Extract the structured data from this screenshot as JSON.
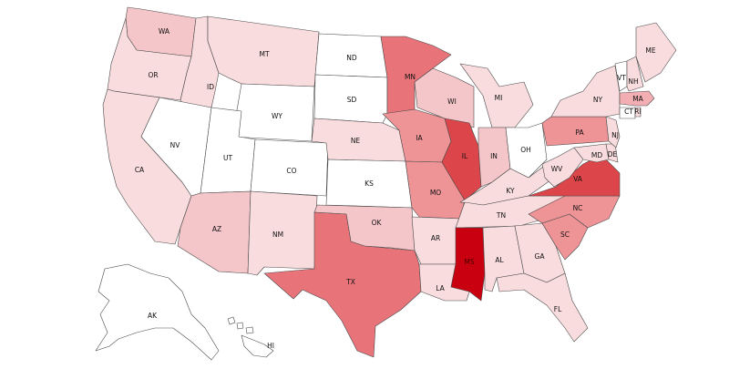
{
  "colors": {
    "none": "#ffffff",
    "light": "#f9dcde",
    "light_mid": "#f5c6c9",
    "mid": "#f2aeb2",
    "mid_strong": "#ee9396",
    "strong": "#e8747a",
    "stronger": "#dc4549",
    "darkest": "#c8000f"
  },
  "states": [
    {
      "code": "WA",
      "level": "light_mid"
    },
    {
      "code": "OR",
      "level": "light"
    },
    {
      "code": "CA",
      "level": "light"
    },
    {
      "code": "ID",
      "level": "light"
    },
    {
      "code": "NV",
      "level": "none"
    },
    {
      "code": "MT",
      "level": "light"
    },
    {
      "code": "WY",
      "level": "none"
    },
    {
      "code": "UT",
      "level": "none"
    },
    {
      "code": "AZ",
      "level": "light_mid"
    },
    {
      "code": "CO",
      "level": "none"
    },
    {
      "code": "NM",
      "level": "light"
    },
    {
      "code": "ND",
      "level": "none"
    },
    {
      "code": "SD",
      "level": "none"
    },
    {
      "code": "NE",
      "level": "light"
    },
    {
      "code": "KS",
      "level": "none"
    },
    {
      "code": "OK",
      "level": "light_mid"
    },
    {
      "code": "TX",
      "level": "strong"
    },
    {
      "code": "MN",
      "level": "strong"
    },
    {
      "code": "IA",
      "level": "mid_strong"
    },
    {
      "code": "MO",
      "level": "mid_strong"
    },
    {
      "code": "AR",
      "level": "light"
    },
    {
      "code": "LA",
      "level": "light"
    },
    {
      "code": "WI",
      "level": "light_mid"
    },
    {
      "code": "IL",
      "level": "stronger"
    },
    {
      "code": "MI",
      "level": "light"
    },
    {
      "code": "IN",
      "level": "light_mid"
    },
    {
      "code": "OH",
      "level": "none"
    },
    {
      "code": "KY",
      "level": "light"
    },
    {
      "code": "TN",
      "level": "light"
    },
    {
      "code": "MS",
      "level": "darkest"
    },
    {
      "code": "AL",
      "level": "light"
    },
    {
      "code": "GA",
      "level": "light"
    },
    {
      "code": "FL",
      "level": "light"
    },
    {
      "code": "SC",
      "level": "mid_strong"
    },
    {
      "code": "NC",
      "level": "mid_strong"
    },
    {
      "code": "VA",
      "level": "stronger"
    },
    {
      "code": "WV",
      "level": "light"
    },
    {
      "code": "MD",
      "level": "light"
    },
    {
      "code": "DE",
      "level": "light"
    },
    {
      "code": "PA",
      "level": "mid_strong"
    },
    {
      "code": "NJ",
      "level": "light"
    },
    {
      "code": "NY",
      "level": "light"
    },
    {
      "code": "CT",
      "level": "none"
    },
    {
      "code": "RI",
      "level": "light"
    },
    {
      "code": "MA",
      "level": "mid"
    },
    {
      "code": "VT",
      "level": "none"
    },
    {
      "code": "NH",
      "level": "light"
    },
    {
      "code": "ME",
      "level": "light"
    },
    {
      "code": "AK",
      "level": "none"
    },
    {
      "code": "HI",
      "level": "none"
    }
  ]
}
